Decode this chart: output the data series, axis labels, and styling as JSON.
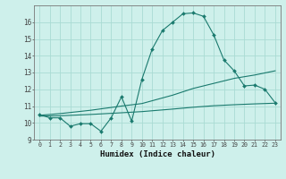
{
  "line1_x": [
    0,
    1,
    2,
    3,
    4,
    5,
    6,
    7,
    8,
    9,
    10,
    11,
    12,
    13,
    14,
    15,
    16,
    17,
    18,
    19,
    20,
    21,
    22,
    23
  ],
  "line1_y": [
    10.5,
    10.3,
    10.3,
    9.8,
    9.95,
    9.95,
    9.5,
    10.3,
    11.55,
    10.1,
    12.6,
    14.4,
    15.5,
    16.0,
    16.5,
    16.55,
    16.35,
    15.25,
    13.75,
    13.1,
    12.2,
    12.25,
    12.0,
    11.2
  ],
  "line2_x": [
    0,
    2,
    5,
    8,
    10,
    13,
    15,
    17,
    19,
    21,
    23
  ],
  "line2_y": [
    10.45,
    10.55,
    10.75,
    11.0,
    11.15,
    11.65,
    12.05,
    12.35,
    12.65,
    12.85,
    13.1
  ],
  "line3_x": [
    0,
    2,
    5,
    8,
    10,
    13,
    15,
    17,
    19,
    21,
    23
  ],
  "line3_y": [
    10.4,
    10.42,
    10.5,
    10.6,
    10.67,
    10.82,
    10.93,
    11.02,
    11.08,
    11.13,
    11.17
  ],
  "color": "#1a7a6e",
  "bg_color": "#cef0eb",
  "grid_color": "#aadbd4",
  "xlabel": "Humidex (Indice chaleur)",
  "ylim": [
    9,
    17
  ],
  "xlim": [
    -0.5,
    23.5
  ],
  "yticks": [
    9,
    10,
    11,
    12,
    13,
    14,
    15,
    16
  ],
  "xticks": [
    0,
    1,
    2,
    3,
    4,
    5,
    6,
    7,
    8,
    9,
    10,
    11,
    12,
    13,
    14,
    15,
    16,
    17,
    18,
    19,
    20,
    21,
    22,
    23
  ]
}
